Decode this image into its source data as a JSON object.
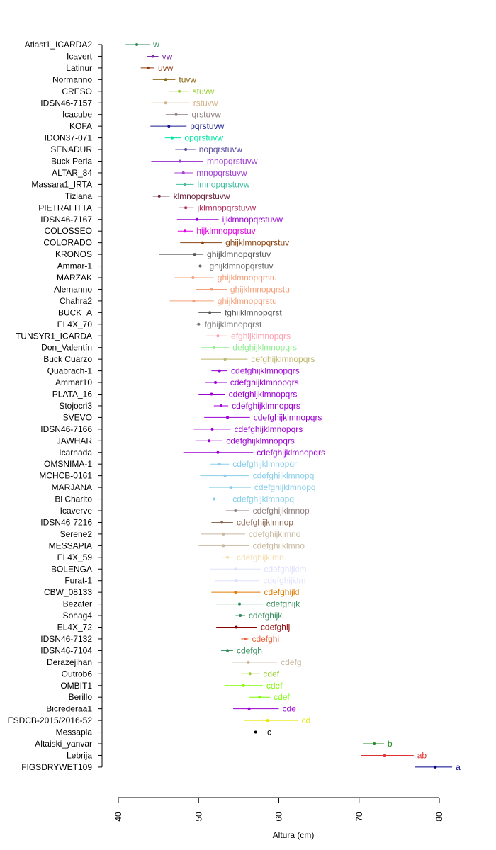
{
  "chart_data": {
    "type": "scatter",
    "orientation": "horizontal-dotplot-with-error-bars",
    "xlabel": "Altura (cm)",
    "xlim": [
      40,
      80
    ],
    "xticks": [
      40,
      50,
      60,
      70,
      80
    ],
    "grid": false,
    "legend": "none",
    "rows": [
      {
        "name": "Atlast1_ICARDA2",
        "mean": 42.3,
        "low": 40.9,
        "high": 43.9,
        "group": "w",
        "color": "#2e8b57"
      },
      {
        "name": "Icavert",
        "mean": 44.3,
        "low": 43.6,
        "high": 45.0,
        "group": "vw",
        "color": "#7b2fa8"
      },
      {
        "name": "Latinur",
        "mean": 43.7,
        "low": 42.8,
        "high": 44.5,
        "group": "uvw",
        "color": "#8b3a0f"
      },
      {
        "name": "Normanno",
        "mean": 45.9,
        "low": 44.3,
        "high": 47.1,
        "group": "tuvw",
        "color": "#8b6a14"
      },
      {
        "name": "CRESO",
        "mean": 47.6,
        "low": 46.3,
        "high": 48.8,
        "group": "stuvw",
        "color": "#9acd32"
      },
      {
        "name": "IDSN46-7157",
        "mean": 45.9,
        "low": 44.1,
        "high": 48.9,
        "group": "rstuvw",
        "color": "#d2b48c"
      },
      {
        "name": "Icacube",
        "mean": 47.2,
        "low": 45.9,
        "high": 48.7,
        "group": "qrstuvw",
        "color": "#8f7f7f"
      },
      {
        "name": "KOFA",
        "mean": 46.3,
        "low": 44.0,
        "high": 48.5,
        "group": "pqrstuvw",
        "color": "#1a1a8c"
      },
      {
        "name": "IDON37-071",
        "mean": 46.7,
        "low": 45.8,
        "high": 47.8,
        "group": "opqrstuvw",
        "color": "#00e5a0"
      },
      {
        "name": "SENADUR",
        "mean": 48.4,
        "low": 47.1,
        "high": 49.6,
        "group": "nopqrstuvw",
        "color": "#5a4a9c"
      },
      {
        "name": "Buck Perla",
        "mean": 47.7,
        "low": 44.1,
        "high": 50.6,
        "group": "mnopqrstuvw",
        "color": "#a040d0"
      },
      {
        "name": "ALTAR_84",
        "mean": 48.1,
        "low": 47.0,
        "high": 49.3,
        "group": "mnopqrstuvw",
        "color": "#a040d0"
      },
      {
        "name": "Massara1_IRTA",
        "mean": 48.3,
        "low": 47.2,
        "high": 49.4,
        "group": "lmnopqrstuvw",
        "color": "#40c0a0"
      },
      {
        "name": "Tiziana",
        "mean": 45.1,
        "low": 44.3,
        "high": 46.4,
        "group": "klmnopqrstuvw",
        "color": "#6b1f3a"
      },
      {
        "name": "PIETRAFITTA",
        "mean": 48.4,
        "low": 47.6,
        "high": 49.4,
        "group": "jklmnopqrstuvw",
        "color": "#b03060"
      },
      {
        "name": "IDSN46-7167",
        "mean": 49.8,
        "low": 47.3,
        "high": 52.5,
        "group": "ijklmnopqrstuvw",
        "color": "#9b00d3"
      },
      {
        "name": "COLOSSEO",
        "mean": 48.3,
        "low": 47.4,
        "high": 49.3,
        "group": "hijklmnopqrstuv",
        "color": "#e000e0"
      },
      {
        "name": "COLORADO",
        "mean": 50.5,
        "low": 47.7,
        "high": 52.9,
        "group": "ghijklmnopqrstuv",
        "color": "#8b4513"
      },
      {
        "name": "KRONOS",
        "mean": 49.5,
        "low": 45.1,
        "high": 50.6,
        "group": "ghijklmnopqrstuv",
        "color": "#555555"
      },
      {
        "name": "Ammar-1",
        "mean": 50.2,
        "low": 49.5,
        "high": 50.9,
        "group": "ghijklmnopqrstuv",
        "color": "#666666"
      },
      {
        "name": "MARZAK",
        "mean": 49.3,
        "low": 47.0,
        "high": 51.9,
        "group": "ghijklmnopqrstu",
        "color": "#f5a07a"
      },
      {
        "name": "Alemanno",
        "mean": 51.6,
        "low": 49.7,
        "high": 53.5,
        "group": "ghijklmnopqrstu",
        "color": "#f5a07a"
      },
      {
        "name": "Chahra2",
        "mean": 49.4,
        "low": 46.4,
        "high": 51.9,
        "group": "ghijklmnopqrstu",
        "color": "#f5a07a"
      },
      {
        "name": "BUCK_A",
        "mean": 51.4,
        "low": 50.0,
        "high": 52.8,
        "group": "fghijklmnopqrst",
        "color": "#555555"
      },
      {
        "name": "EL4X_70",
        "mean": 50.0,
        "low": 49.7,
        "high": 50.3,
        "group": "fghijklmnopqrst",
        "color": "#777777"
      },
      {
        "name": "TUNSYR1_ICARDA",
        "mean": 52.4,
        "low": 51.0,
        "high": 53.6,
        "group": "efghijklmnopqrs",
        "color": "#ffa0b0"
      },
      {
        "name": "Don_Valentín",
        "mean": 51.9,
        "low": 50.3,
        "high": 53.8,
        "group": "defghijklmnopqrs",
        "color": "#90ee90"
      },
      {
        "name": "Buck Cuarzo",
        "mean": 53.3,
        "low": 50.3,
        "high": 56.1,
        "group": "cefghijklmnopqrs",
        "color": "#bdb76b"
      },
      {
        "name": "Quabrach-1",
        "mean": 52.6,
        "low": 51.6,
        "high": 53.6,
        "group": "cdefghijklmnopqrs",
        "color": "#9b00d3"
      },
      {
        "name": "Ammar10",
        "mean": 52.1,
        "low": 50.8,
        "high": 53.5,
        "group": "cdefghijklmnopqrs",
        "color": "#9b00d3"
      },
      {
        "name": "PLATA_16",
        "mean": 51.6,
        "low": 50.0,
        "high": 53.3,
        "group": "cdefghijklmnopqrs",
        "color": "#9b00d3"
      },
      {
        "name": "Stojocri3",
        "mean": 52.8,
        "low": 51.9,
        "high": 53.7,
        "group": "cdefghijklmnopqrs",
        "color": "#9b00d3"
      },
      {
        "name": "SVEVO",
        "mean": 53.6,
        "low": 50.7,
        "high": 56.4,
        "group": "cdefghijklmnopqrs",
        "color": "#9b00d3"
      },
      {
        "name": "IDSN46-7166",
        "mean": 51.7,
        "low": 49.4,
        "high": 54.0,
        "group": "cdefghijklmnopqrs",
        "color": "#9b00d3"
      },
      {
        "name": "JAWHAR",
        "mean": 51.3,
        "low": 49.6,
        "high": 53.0,
        "group": "cdefghijklmnopqrs",
        "color": "#9b00d3"
      },
      {
        "name": "Icarnada",
        "mean": 52.4,
        "low": 48.1,
        "high": 56.8,
        "group": "cdefghijklmnopqrs",
        "color": "#9b00d3"
      },
      {
        "name": "OMSNIMA-1",
        "mean": 52.6,
        "low": 51.5,
        "high": 53.8,
        "group": "cdefghijklmnopqr",
        "color": "#87ceeb"
      },
      {
        "name": "MCHCB-0161",
        "mean": 53.3,
        "low": 50.2,
        "high": 56.3,
        "group": "cdefghijklmnopq",
        "color": "#87ceeb"
      },
      {
        "name": "MARJANA",
        "mean": 54.0,
        "low": 51.3,
        "high": 56.5,
        "group": "cdefghijklmnopq",
        "color": "#87ceeb"
      },
      {
        "name": "Bl Charito",
        "mean": 51.9,
        "low": 50.0,
        "high": 53.8,
        "group": "cdefghijklmnopq",
        "color": "#87ceeb"
      },
      {
        "name": "Icaverve",
        "mean": 54.6,
        "low": 53.4,
        "high": 56.3,
        "group": "cdefghijklmnop",
        "color": "#8f7f7f"
      },
      {
        "name": "IDSN46-7216",
        "mean": 52.9,
        "low": 51.6,
        "high": 54.3,
        "group": "cdefghijklmnop",
        "color": "#8b6a54"
      },
      {
        "name": "Serene2",
        "mean": 53.1,
        "low": 50.3,
        "high": 55.8,
        "group": "cdefghijklmno",
        "color": "#c8b8a0"
      },
      {
        "name": "MESSAPIA",
        "mean": 53.1,
        "low": 50.0,
        "high": 56.3,
        "group": "cdefghijklmno",
        "color": "#c8b8a0"
      },
      {
        "name": "EL4X_59",
        "mean": 53.6,
        "low": 52.9,
        "high": 54.3,
        "group": "cdefghijklmn",
        "color": "#f5deb3"
      },
      {
        "name": "BOLENGA",
        "mean": 54.6,
        "low": 51.4,
        "high": 57.7,
        "group": "cdefghijklm",
        "color": "#e0e0ff"
      },
      {
        "name": "Furat-1",
        "mean": 54.7,
        "low": 52.0,
        "high": 57.6,
        "group": "cdefghijklm",
        "color": "#e0e0ff"
      },
      {
        "name": "CBW_08133",
        "mean": 54.6,
        "low": 51.6,
        "high": 57.7,
        "group": "cdefghijkl",
        "color": "#e07b00"
      },
      {
        "name": "Bezater",
        "mean": 55.1,
        "low": 52.2,
        "high": 58.0,
        "group": "cdefghijk",
        "color": "#2e8b57"
      },
      {
        "name": "Sohag4",
        "mean": 55.2,
        "low": 54.6,
        "high": 55.8,
        "group": "cdefghijk",
        "color": "#2e8b57"
      },
      {
        "name": "EL4X_72",
        "mean": 54.7,
        "low": 52.2,
        "high": 57.3,
        "group": "cdefghij",
        "color": "#8b0000"
      },
      {
        "name": "IDSN46-7132",
        "mean": 55.8,
        "low": 55.3,
        "high": 56.2,
        "group": "cdefghi",
        "color": "#e9653c"
      },
      {
        "name": "IDSN46-7104",
        "mean": 53.6,
        "low": 52.8,
        "high": 54.3,
        "group": "cdefgh",
        "color": "#2e8b57"
      },
      {
        "name": "Derazejihan",
        "mean": 56.2,
        "low": 54.2,
        "high": 59.8,
        "group": "cdefg",
        "color": "#c8b8a0"
      },
      {
        "name": "Outrob6",
        "mean": 56.4,
        "low": 55.3,
        "high": 57.6,
        "group": "cdef",
        "color": "#9acd32"
      },
      {
        "name": "OMBIT1",
        "mean": 55.6,
        "low": 53.2,
        "high": 58.0,
        "group": "cdef",
        "color": "#7cfc00"
      },
      {
        "name": "Berillo",
        "mean": 57.6,
        "low": 56.3,
        "high": 58.9,
        "group": "cdef",
        "color": "#7cfc00"
      },
      {
        "name": "Bicrederaa1",
        "mean": 56.3,
        "low": 54.3,
        "high": 60.0,
        "group": "cde",
        "color": "#9b00d3"
      },
      {
        "name": "ESDCB-2015/2016-52",
        "mean": 58.6,
        "low": 55.7,
        "high": 62.4,
        "group": "cd",
        "color": "#e6e600"
      },
      {
        "name": "Messapia",
        "mean": 57.1,
        "low": 56.1,
        "high": 58.1,
        "group": "c",
        "color": "#000000"
      },
      {
        "name": "Altaiski_yanvar",
        "mean": 71.9,
        "low": 70.5,
        "high": 73.1,
        "group": "b",
        "color": "#228b22"
      },
      {
        "name": "Lebrija",
        "mean": 73.2,
        "low": 70.2,
        "high": 76.8,
        "group": "ab",
        "color": "#e03030"
      },
      {
        "name": "FIGSDRYWET109",
        "mean": 79.5,
        "low": 77.0,
        "high": 81.6,
        "group": "a",
        "color": "#00008b"
      }
    ]
  }
}
